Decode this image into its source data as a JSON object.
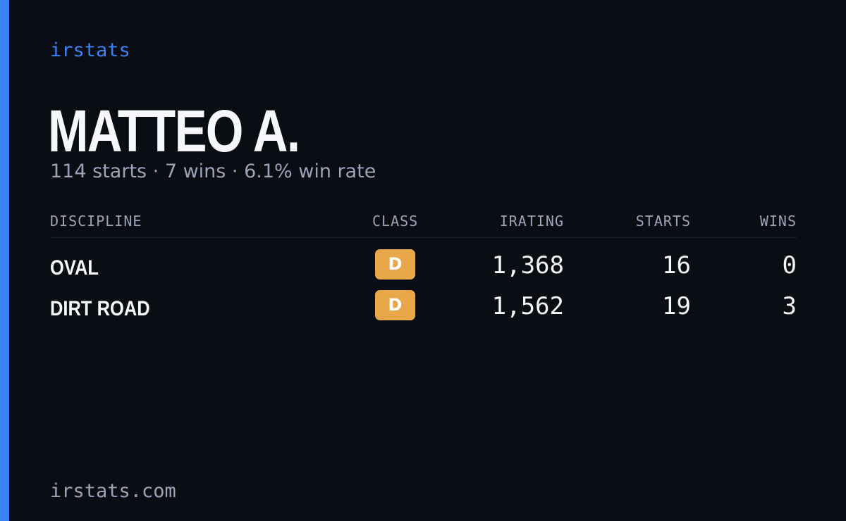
{
  "brand": "irstats",
  "header": {
    "name": "MATTEO A.",
    "summary": "114 starts · 7 wins · 6.1% win rate"
  },
  "table": {
    "columns": [
      "DISCIPLINE",
      "CLASS",
      "IRATING",
      "STARTS",
      "WINS"
    ],
    "rows": [
      [
        "OVAL",
        "D",
        "1,368",
        "16",
        "0"
      ],
      [
        "DIRT ROAD",
        "D",
        "1,562",
        "19",
        "3"
      ]
    ]
  },
  "footer": "irstats.com"
}
